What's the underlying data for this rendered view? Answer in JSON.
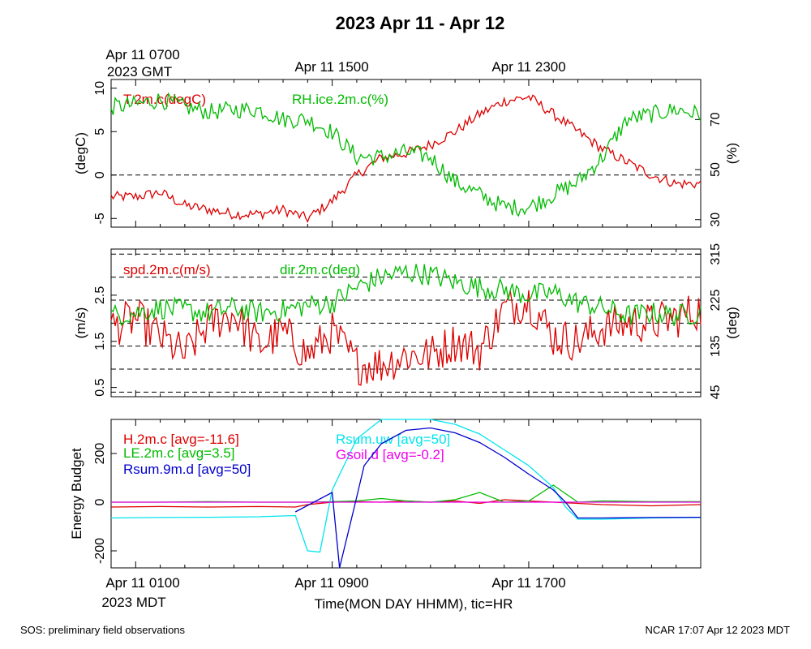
{
  "title": "2023 Apr 11 - Apr 12",
  "footer": {
    "left": "SOS: preliminary field observations",
    "right": "NCAR 17:07 Apr 12 2023 MDT"
  },
  "top_axis": {
    "tick_labels": [
      "Apr 11 0700",
      "Apr 11 1500",
      "Apr 11 2300"
    ],
    "sublabel": "2023 GMT"
  },
  "bottom_axis": {
    "tick_labels": [
      "Apr 11 0100",
      "Apr 11 0900",
      "Apr 11 1700"
    ],
    "sublabel": "2023 MDT",
    "xlabel": "Time(MON DAY HHMM), tic=HR"
  },
  "colors": {
    "red": "#dd0000",
    "green": "#00bb00",
    "blue": "#0000cc",
    "cyan": "#00e5ee",
    "magenta": "#ee00ee",
    "black": "#000000"
  },
  "chart_data": [
    {
      "type": "line",
      "panel": "temperature-humidity",
      "x_unit": "hours since Apr 11 0000 MDT",
      "xlim": [
        0,
        24
      ],
      "ylabel_left": "(degC)",
      "ylabel_right": "(%)",
      "ylim_left": [
        -6,
        11
      ],
      "ylim_right": [
        27,
        86
      ],
      "yticks_left": [
        -5,
        0,
        5,
        10
      ],
      "yticks_right": [
        30,
        50,
        70
      ],
      "reference_lines_left": [
        0
      ],
      "series": [
        {
          "name": "T.2m.c(degC)",
          "axis": "left",
          "color": "red",
          "x": [
            0,
            1,
            2,
            3,
            4,
            5,
            6,
            7,
            8,
            9,
            10,
            11,
            12,
            13,
            14,
            15,
            16,
            17,
            18,
            19,
            20,
            21,
            22,
            23,
            24
          ],
          "values": [
            -2.5,
            -2.5,
            -2,
            -3.5,
            -4,
            -4.5,
            -4.5,
            -4,
            -5,
            -3,
            0,
            2,
            2.5,
            3.5,
            5,
            7,
            8.5,
            9,
            7,
            5,
            3,
            1.5,
            0,
            -1,
            -1
          ]
        },
        {
          "name": "RH.ice.2m.c(%)",
          "axis": "right",
          "color": "green",
          "x": [
            0,
            1,
            2,
            3,
            4,
            5,
            6,
            7,
            8,
            9,
            10,
            11,
            12,
            13,
            14,
            15,
            16,
            17,
            18,
            19,
            20,
            21,
            22,
            23,
            24
          ],
          "values": [
            75,
            76,
            78,
            75,
            73,
            74,
            74,
            70,
            70,
            65,
            55,
            55,
            57,
            55,
            45,
            40,
            35,
            35,
            40,
            45,
            55,
            70,
            72,
            74,
            72
          ]
        }
      ]
    },
    {
      "type": "line",
      "panel": "wind",
      "x_unit": "hours since Apr 11 0000 MDT",
      "xlim": [
        0,
        24
      ],
      "ylabel_left": "(m/s)",
      "ylabel_right": "(deg)",
      "ylim_left": [
        0.3,
        3.5
      ],
      "ylim_right": [
        36,
        325
      ],
      "yticks_left": [
        0.5,
        1.5,
        2.5
      ],
      "yticks_right": [
        45,
        135,
        225,
        315
      ],
      "reference_lines_right": [
        45,
        90,
        135,
        180,
        225,
        270,
        315
      ],
      "series": [
        {
          "name": "spd.2m.c(m/s)",
          "axis": "left",
          "color": "red",
          "x": [
            0,
            1,
            2,
            3,
            4,
            5,
            6,
            7,
            8,
            9,
            10,
            11,
            12,
            13,
            14,
            15,
            16,
            17,
            18,
            19,
            20,
            21,
            22,
            23,
            24
          ],
          "values": [
            1.8,
            2.0,
            1.6,
            1.2,
            1.9,
            2.1,
            1.4,
            1.7,
            1.2,
            1.7,
            1.0,
            1.0,
            1.2,
            1.2,
            1.5,
            1.3,
            2.2,
            2.4,
            1.6,
            1.5,
            1.8,
            1.9,
            1.9,
            2.0,
            2.2
          ]
        },
        {
          "name": "dir.2m.c(deg)",
          "axis": "right",
          "color": "green",
          "x": [
            0,
            1,
            2,
            3,
            4,
            5,
            6,
            7,
            8,
            9,
            10,
            11,
            12,
            13,
            14,
            15,
            16,
            17,
            18,
            19,
            20,
            21,
            22,
            23,
            24
          ],
          "values": [
            195,
            200,
            210,
            205,
            200,
            210,
            200,
            205,
            215,
            220,
            250,
            270,
            280,
            275,
            260,
            250,
            245,
            235,
            240,
            220,
            210,
            195,
            200,
            195,
            200
          ]
        }
      ]
    },
    {
      "type": "line",
      "panel": "energy-budget",
      "x_unit": "hours since Apr 11 0000 MDT",
      "xlim": [
        0,
        24
      ],
      "ylabel_left": "Energy Budget",
      "ylim_left": [
        -270,
        340
      ],
      "yticks_left": [
        -200,
        0,
        200
      ],
      "reference_lines_left": [
        0
      ],
      "series": [
        {
          "name": "H.2m.c [avg=-11.6]",
          "color": "red",
          "x": [
            0,
            2,
            4,
            6,
            7.5,
            8,
            9,
            10,
            11,
            12,
            13,
            14,
            15,
            16,
            17,
            18,
            19,
            20,
            22,
            24
          ],
          "values": [
            -20,
            -18,
            -20,
            -18,
            -20,
            -10,
            0,
            2,
            0,
            5,
            0,
            5,
            -5,
            10,
            5,
            0,
            -5,
            -10,
            -15,
            -10
          ]
        },
        {
          "name": "LE.2m.c [avg=3.5]",
          "color": "green",
          "x": [
            0,
            2,
            4,
            6,
            8,
            9,
            10,
            11,
            12,
            13,
            14,
            15,
            16,
            17,
            18,
            19,
            20,
            22,
            24
          ],
          "values": [
            0,
            0,
            2,
            0,
            0,
            2,
            5,
            15,
            5,
            0,
            10,
            40,
            0,
            5,
            70,
            0,
            5,
            2,
            2
          ]
        },
        {
          "name": "Rsum.uw [avg=50]",
          "color": "cyan",
          "x": [
            0,
            2,
            4,
            6,
            7.5,
            8,
            8.5,
            9,
            10,
            11,
            12,
            13,
            14,
            15,
            16,
            17,
            18,
            18.5,
            19,
            20,
            22,
            24
          ],
          "values": [
            -65,
            -63,
            -62,
            -60,
            -55,
            -200,
            -205,
            50,
            260,
            340,
            350,
            345,
            320,
            280,
            215,
            150,
            60,
            -20,
            -70,
            -70,
            -65,
            -63
          ]
        },
        {
          "name": "Gsoil.d [avg=-0.2]",
          "color": "magenta",
          "x": [
            0,
            24
          ],
          "values": [
            0,
            0
          ]
        },
        {
          "name": "Rsum.9m.d [avg=50]",
          "color": "blue",
          "x": [
            7.5,
            9,
            9.3,
            9.9,
            10.3,
            11,
            12,
            13,
            14,
            15,
            16,
            17,
            18,
            18.5,
            19,
            20,
            22,
            24
          ],
          "values": [
            -40,
            40,
            -270,
            -20,
            150,
            240,
            295,
            305,
            285,
            245,
            185,
            115,
            50,
            0,
            -65,
            -65,
            -63,
            -62
          ]
        }
      ]
    }
  ]
}
